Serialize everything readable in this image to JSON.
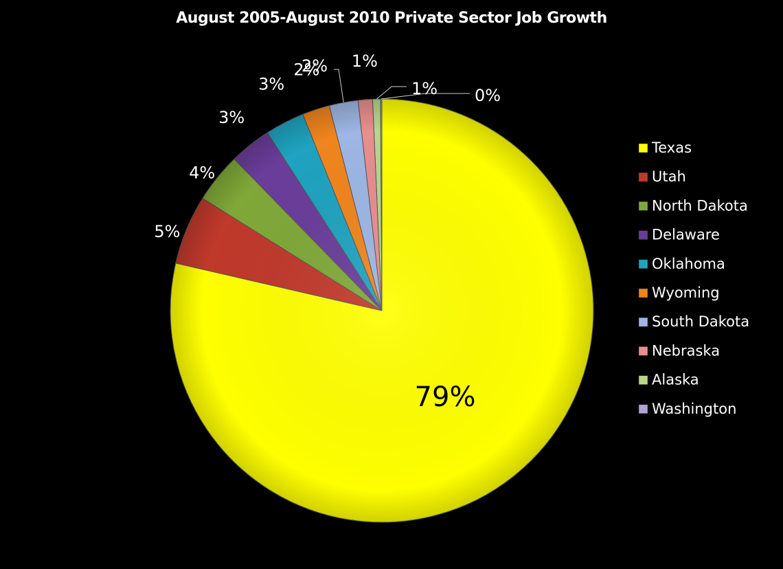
{
  "chart_data": {
    "type": "pie",
    "title": "August 2005-August 2010 Private Sector Job Growth",
    "legend_position": "right",
    "categories": [
      "Texas",
      "Utah",
      "North Dakota",
      "Delaware",
      "Oklahoma",
      "Wyoming",
      "South Dakota",
      "Nebraska",
      "Alaska",
      "Washington"
    ],
    "values": [
      78.6,
      5.3,
      3.8,
      3.2,
      3.0,
      2.1,
      2.2,
      1.1,
      0.6,
      0.1
    ],
    "data_labels": [
      "79%",
      "5%",
      "4%",
      "3%",
      "3%",
      "2%",
      "2%",
      "1%",
      "1%",
      "0%"
    ],
    "colors": [
      "#ffff00",
      "#c0392b",
      "#7fa838",
      "#6a3d9a",
      "#1fa3c0",
      "#f0851e",
      "#9db6e4",
      "#e88e8e",
      "#b8d68a",
      "#b0a2d6"
    ]
  }
}
